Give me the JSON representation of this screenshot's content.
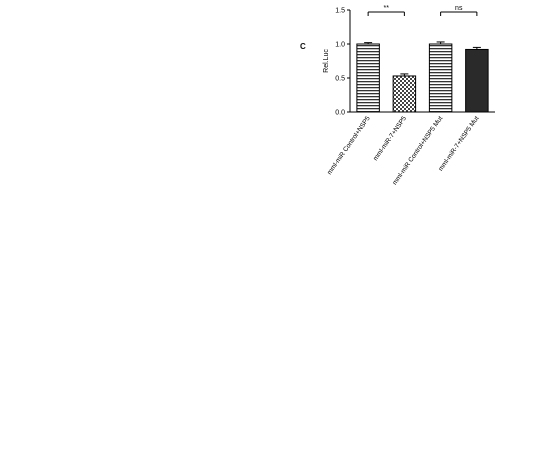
{
  "panel_c": {
    "label": "C",
    "chart_data": {
      "type": "bar",
      "title": "",
      "xlabel": "",
      "ylabel": "Rel.Luc",
      "ylim": [
        0,
        1.5
      ],
      "yticks": [
        0.0,
        0.5,
        1.0,
        1.5
      ],
      "ytick_labels": [
        "0.0",
        "0.5",
        "1.0",
        "1.5"
      ],
      "categories": [
        "mml-miR Control+NSP5",
        "mml-miR-7+NSP5",
        "mml-miR Control+NSP5 Mut",
        "mml-miR-7+NSP5 Mut"
      ],
      "values": [
        1.0,
        0.53,
        1.0,
        0.92
      ],
      "errors": [
        0.02,
        0.03,
        0.03,
        0.03
      ],
      "patterns": [
        "hatch",
        "checker",
        "hatch",
        "dark"
      ],
      "significance": [
        {
          "from": 0,
          "to": 1,
          "label": "**"
        },
        {
          "from": 2,
          "to": 3,
          "label": "ns"
        }
      ]
    }
  }
}
